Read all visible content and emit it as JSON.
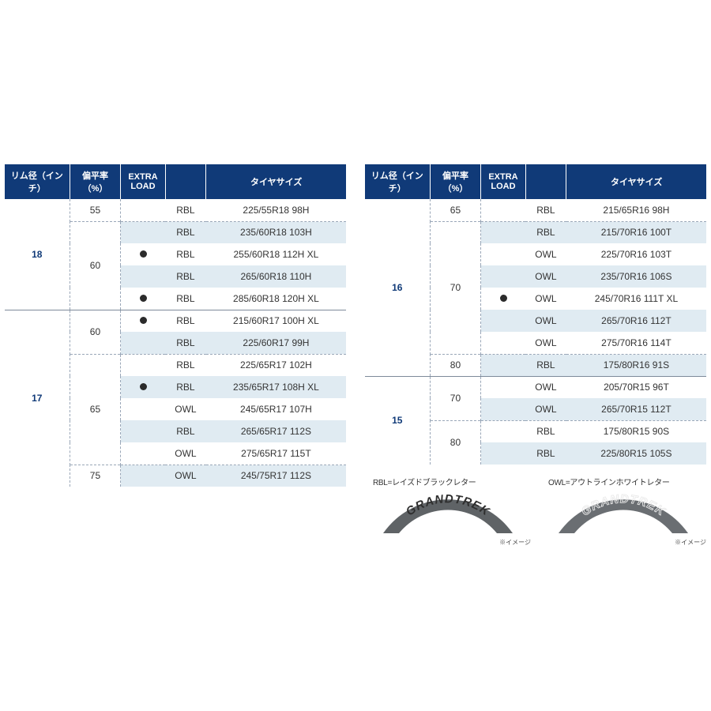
{
  "colors": {
    "header_bg": "#103a78",
    "header_fg": "#ffffff",
    "alt_row": "#e0ebf2",
    "border_dash": "#9aa7b8",
    "border_solid": "#7d8a9a",
    "rim_text": "#103a78",
    "dot": "#2b2b2b",
    "rbl_fill": "#5f6366",
    "rbl_text": "#2e2e2e",
    "owl_fill": "#6a6e72",
    "owl_text": "#e9e9e9"
  },
  "headers": {
    "rim": "リム径（インチ）",
    "ratio": "偏平率（%）",
    "extra_load": "EXTRA LOAD",
    "type": "",
    "size": "タイヤサイズ"
  },
  "left": [
    {
      "rim": "18",
      "groups": [
        {
          "ratio": "55",
          "rows": [
            {
              "xl": false,
              "type": "RBL",
              "size": "225/55R18 98H"
            }
          ]
        },
        {
          "ratio": "60",
          "rows": [
            {
              "xl": false,
              "type": "RBL",
              "size": "235/60R18 103H"
            },
            {
              "xl": true,
              "type": "RBL",
              "size": "255/60R18 112H XL"
            },
            {
              "xl": false,
              "type": "RBL",
              "size": "265/60R18 110H"
            },
            {
              "xl": true,
              "type": "RBL",
              "size": "285/60R18 120H XL"
            }
          ]
        }
      ]
    },
    {
      "rim": "17",
      "groups": [
        {
          "ratio": "60",
          "rows": [
            {
              "xl": true,
              "type": "RBL",
              "size": "215/60R17 100H XL"
            },
            {
              "xl": false,
              "type": "RBL",
              "size": "225/60R17 99H"
            }
          ]
        },
        {
          "ratio": "65",
          "rows": [
            {
              "xl": false,
              "type": "RBL",
              "size": "225/65R17 102H"
            },
            {
              "xl": true,
              "type": "RBL",
              "size": "235/65R17 108H XL"
            },
            {
              "xl": false,
              "type": "OWL",
              "size": "245/65R17 107H"
            },
            {
              "xl": false,
              "type": "RBL",
              "size": "265/65R17 112S"
            },
            {
              "xl": false,
              "type": "OWL",
              "size": "275/65R17 115T"
            }
          ]
        },
        {
          "ratio": "75",
          "rows": [
            {
              "xl": false,
              "type": "OWL",
              "size": "245/75R17 112S"
            }
          ]
        }
      ]
    }
  ],
  "right": [
    {
      "rim": "16",
      "groups": [
        {
          "ratio": "65",
          "rows": [
            {
              "xl": false,
              "type": "RBL",
              "size": "215/65R16 98H"
            }
          ]
        },
        {
          "ratio": "70",
          "rows": [
            {
              "xl": false,
              "type": "RBL",
              "size": "215/70R16 100T"
            },
            {
              "xl": false,
              "type": "OWL",
              "size": "225/70R16 103T"
            },
            {
              "xl": false,
              "type": "OWL",
              "size": "235/70R16 106S"
            },
            {
              "xl": true,
              "type": "OWL",
              "size": "245/70R16 111T XL"
            },
            {
              "xl": false,
              "type": "OWL",
              "size": "265/70R16 112T"
            },
            {
              "xl": false,
              "type": "OWL",
              "size": "275/70R16 114T"
            }
          ]
        },
        {
          "ratio": "80",
          "rows": [
            {
              "xl": false,
              "type": "RBL",
              "size": "175/80R16 91S"
            }
          ]
        }
      ]
    },
    {
      "rim": "15",
      "groups": [
        {
          "ratio": "70",
          "rows": [
            {
              "xl": false,
              "type": "OWL",
              "size": "205/70R15 96T"
            },
            {
              "xl": false,
              "type": "OWL",
              "size": "265/70R15 112T"
            }
          ]
        },
        {
          "ratio": "80",
          "rows": [
            {
              "xl": false,
              "type": "RBL",
              "size": "175/80R15 90S"
            },
            {
              "xl": false,
              "type": "RBL",
              "size": "225/80R15 105S"
            }
          ]
        }
      ]
    }
  ],
  "legend": {
    "rbl_label": "RBL=レイズドブラックレター",
    "owl_label": "OWL=アウトラインホワイトレター",
    "brand_text": "GRANDTREK",
    "note": "※イメージ"
  }
}
